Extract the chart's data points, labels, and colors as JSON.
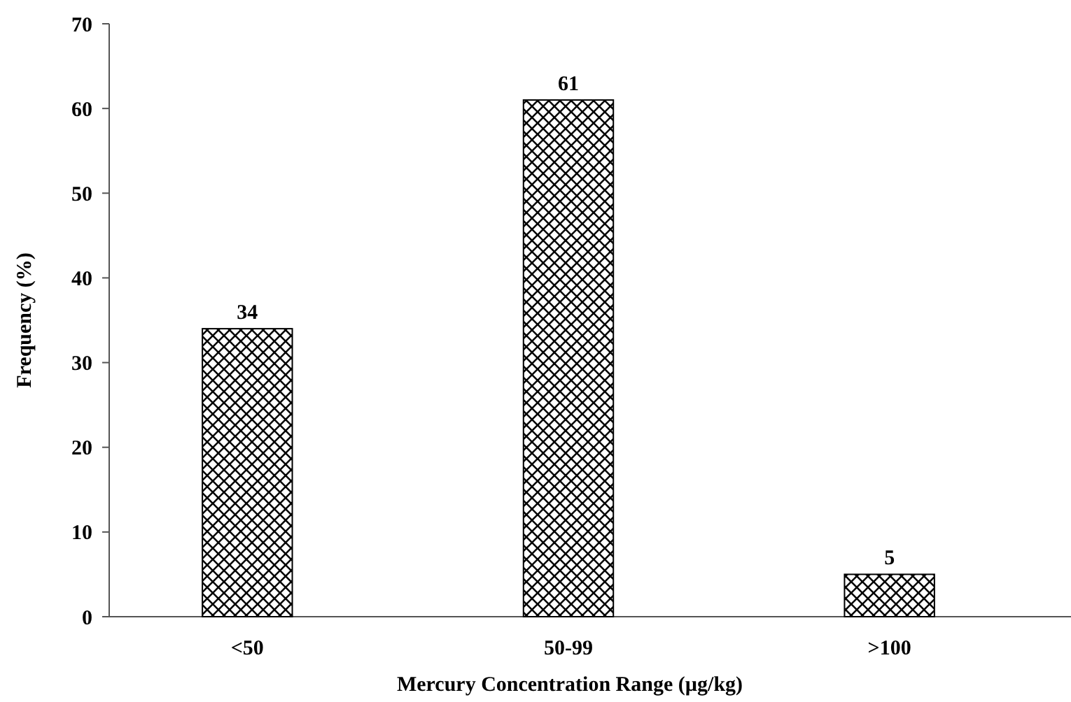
{
  "chart_data": {
    "type": "bar",
    "xlabel": "Mercury Concentration Range (µg/kg)",
    "ylabel": "Frequency (%)",
    "categories": [
      "<50",
      "50-99",
      ">100"
    ],
    "values": [
      34,
      61,
      5
    ],
    "color": "#000000",
    "ylim": [
      0,
      70
    ],
    "yticks": [
      0,
      10,
      20,
      30,
      40,
      50,
      60,
      70
    ],
    "data_labels": true
  }
}
